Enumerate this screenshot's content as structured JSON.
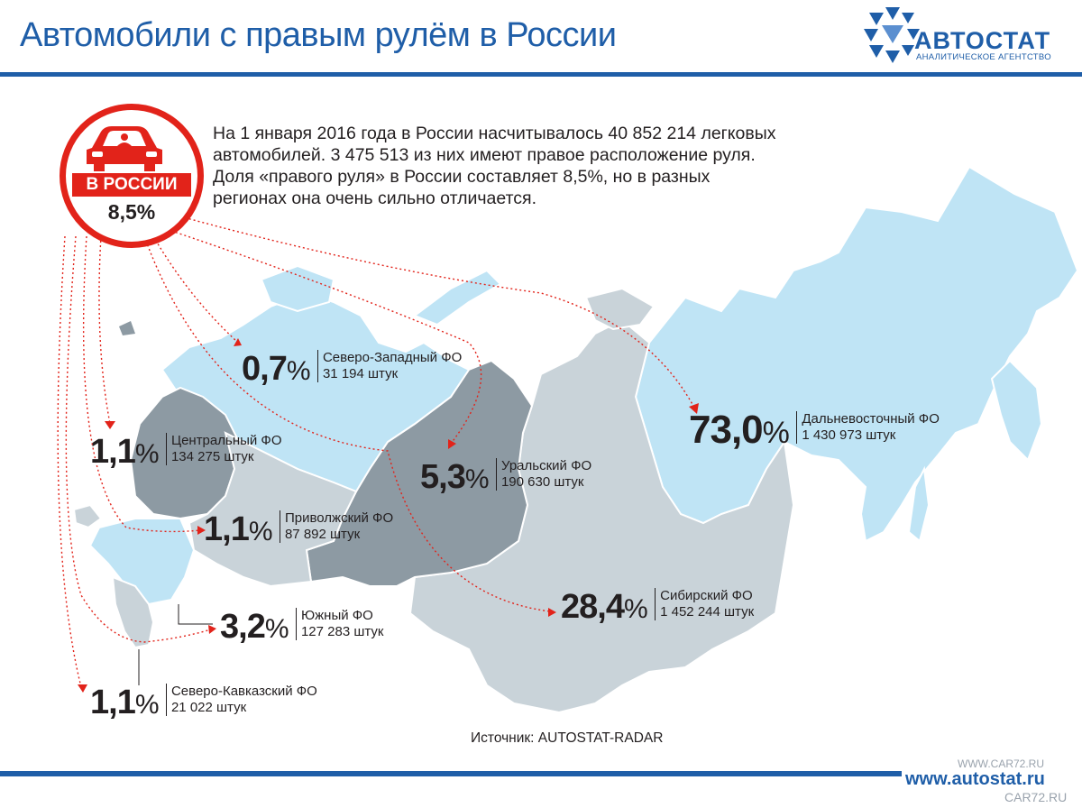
{
  "header": {
    "title": "Автомобили с правым рулём в России",
    "logo_word": "АВТОСТАТ",
    "logo_sub": "АНАЛИТИЧЕСКОЕ АГЕНТСТВО"
  },
  "intro": {
    "lines": [
      "На 1 января 2016 года в России насчитывалось 40 852 214  легковых",
      "автомобилей. 3 475 513 из них имеют правое расположение руля.",
      "Доля «правого руля» в России составляет 8,5%, но в разных",
      "регионах она очень сильно отличается."
    ]
  },
  "badge": {
    "label": "В РОССИИ",
    "value": "8,5%"
  },
  "regions": [
    {
      "id": "nw",
      "value": "0,7",
      "unit": "%",
      "name": "Северо-Западный ФО",
      "count": "31 194 штук",
      "fill": "#bfe4f5"
    },
    {
      "id": "cen",
      "value": "1,1",
      "unit": "%",
      "name": "Центральный ФО",
      "count": "134 275  штук",
      "fill": "#8d9aa3"
    },
    {
      "id": "vol",
      "value": "1,1",
      "unit": "%",
      "name": "Приволжский ФО",
      "count": "87 892 штук",
      "fill": "#c9d3d9"
    },
    {
      "id": "sou",
      "value": "3,2",
      "unit": "%",
      "name": "Южный ФО",
      "count": "127 283  штук",
      "fill": "#bfe4f5"
    },
    {
      "id": "nc",
      "value": "1,1",
      "unit": "%",
      "name": "Северо-Кавказский ФО",
      "count": "21 022 штук",
      "fill": "#c9d3d9"
    },
    {
      "id": "ura",
      "value": "5,3",
      "unit": "%",
      "name": "Уральский ФО",
      "count": "190 630 штук",
      "fill": "#8d9aa3"
    },
    {
      "id": "sib",
      "value": "28,4",
      "unit": "%",
      "name": "Сибирский ФО",
      "count": "1 452 244 штук",
      "fill": "#c9d3d9"
    },
    {
      "id": "fe",
      "value": "73,0",
      "unit": "%",
      "name": "Дальневосточный ФО",
      "count": "1 430 973 штук",
      "fill": "#bfe4f5"
    }
  ],
  "source": "Источник: AUTOSTAT-RADAR",
  "footer": {
    "site": "www.autostat.ru",
    "watermark_top": "WWW.CAR72.RU",
    "watermark_bottom": "CAR72.RU"
  },
  "colors": {
    "brand_blue": "#1f5ea8",
    "accent_red": "#e2231a",
    "light_blue_region": "#bfe4f5",
    "light_gray_region": "#c9d3d9",
    "dark_gray_region": "#8d9aa3"
  }
}
